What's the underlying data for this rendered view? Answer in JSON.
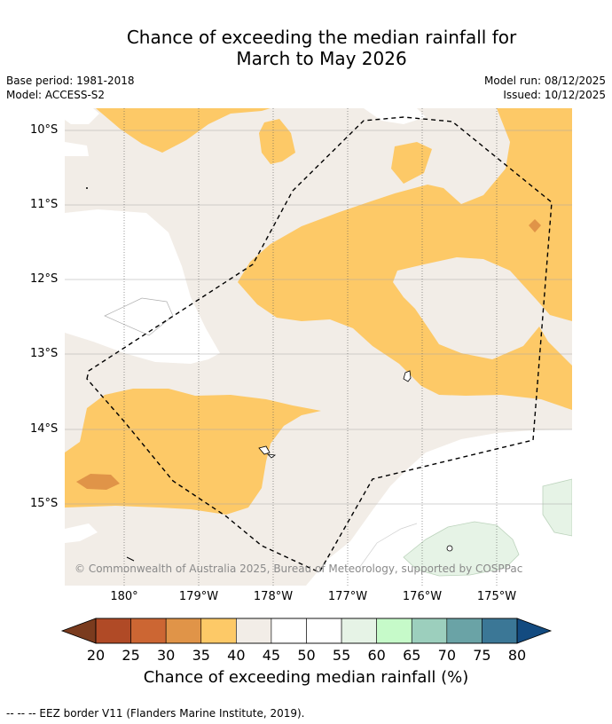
{
  "title": {
    "line1": "Chance of exceeding the median rainfall for",
    "line2": "March to May 2026"
  },
  "meta": {
    "base_period": "Base period: 1981-2018",
    "model": "Model: ACCESS-S2",
    "model_run": "Model run: 08/12/2025",
    "issued": "Issued: 10/12/2025"
  },
  "map": {
    "lat_labels": [
      "10°S",
      "11°S",
      "12°S",
      "13°S",
      "14°S",
      "15°S"
    ],
    "lon_labels": [
      "180°",
      "179°W",
      "178°W",
      "177°W",
      "176°W",
      "175°W"
    ],
    "copyright": "© Commonwealth of Australia 2025, Bureau of Meteorology, supported by COSPPac"
  },
  "colorbar": {
    "ticks": [
      "20",
      "25",
      "30",
      "35",
      "40",
      "45",
      "50",
      "55",
      "60",
      "65",
      "70",
      "75",
      "80"
    ],
    "colors": [
      "#7a3b1e",
      "#b04a26",
      "#cc6633",
      "#e09448",
      "#fdc967",
      "#f2ede7",
      "#ffffff",
      "#ffffff",
      "#e6f3e6",
      "#c6fac9",
      "#9ccfbd",
      "#6aa3a6",
      "#3b7796",
      "#134b80"
    ],
    "label": "Chance of exceeding median rainfall (%)"
  },
  "footnote": "--  --  -- EEZ border V11 (Flanders Marine Institute, 2019).",
  "fill_colors": {
    "light_orange": "#fdc967",
    "mid_orange": "#e09448",
    "neutral": "#f2ede7",
    "light_green": "#e6f3e6"
  }
}
